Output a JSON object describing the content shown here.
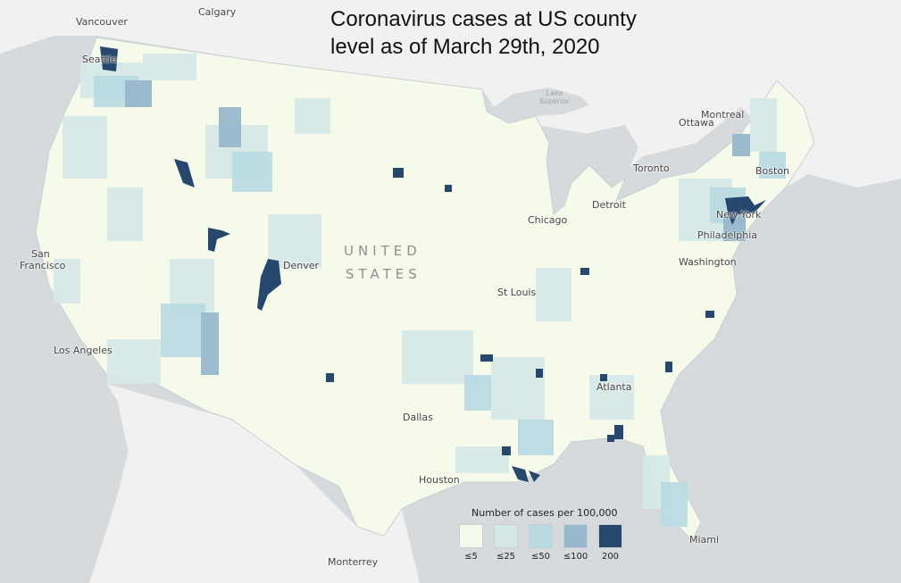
{
  "title_lines": [
    "Coronavirus cases at US county",
    "level as of March 29th, 2020"
  ],
  "country_label_lines": [
    "UNITED",
    "STATES"
  ],
  "water_label_lines": [
    "Lake",
    "Superior"
  ],
  "cities": {
    "vancouver": "Vancouver",
    "calgary": "Calgary",
    "seattle": "Seattle",
    "montreal": "Montreal",
    "ottawa": "Ottawa",
    "toronto": "Toronto",
    "boston": "Boston",
    "detroit": "Detroit",
    "chicago": "Chicago",
    "new_york": "New York",
    "philadelphia": "Philadelphia",
    "washington": "Washington",
    "san_francisco_1": "San",
    "san_francisco_2": "Francisco",
    "denver": "Denver",
    "st_louis": "St Louis",
    "los_angeles": "Los Angeles",
    "atlanta": "Atlanta",
    "dallas": "Dallas",
    "houston": "Houston",
    "miami": "Miami",
    "monterrey": "Monterrey"
  },
  "legend": {
    "title": "Number of cases per 100,000",
    "bins": [
      {
        "label": "≤5",
        "color": "#f6faea"
      },
      {
        "label": "≤25",
        "color": "#d5e8e8"
      },
      {
        "label": "≤50",
        "color": "#b9dae3"
      },
      {
        "label": "≤100",
        "color": "#98b9cc"
      },
      {
        "label": "200",
        "color": "#25486c"
      }
    ]
  },
  "colors": {
    "ocean": "#d7dadd",
    "land_other": "#f1f1f1",
    "border": "#c9cfd3"
  }
}
